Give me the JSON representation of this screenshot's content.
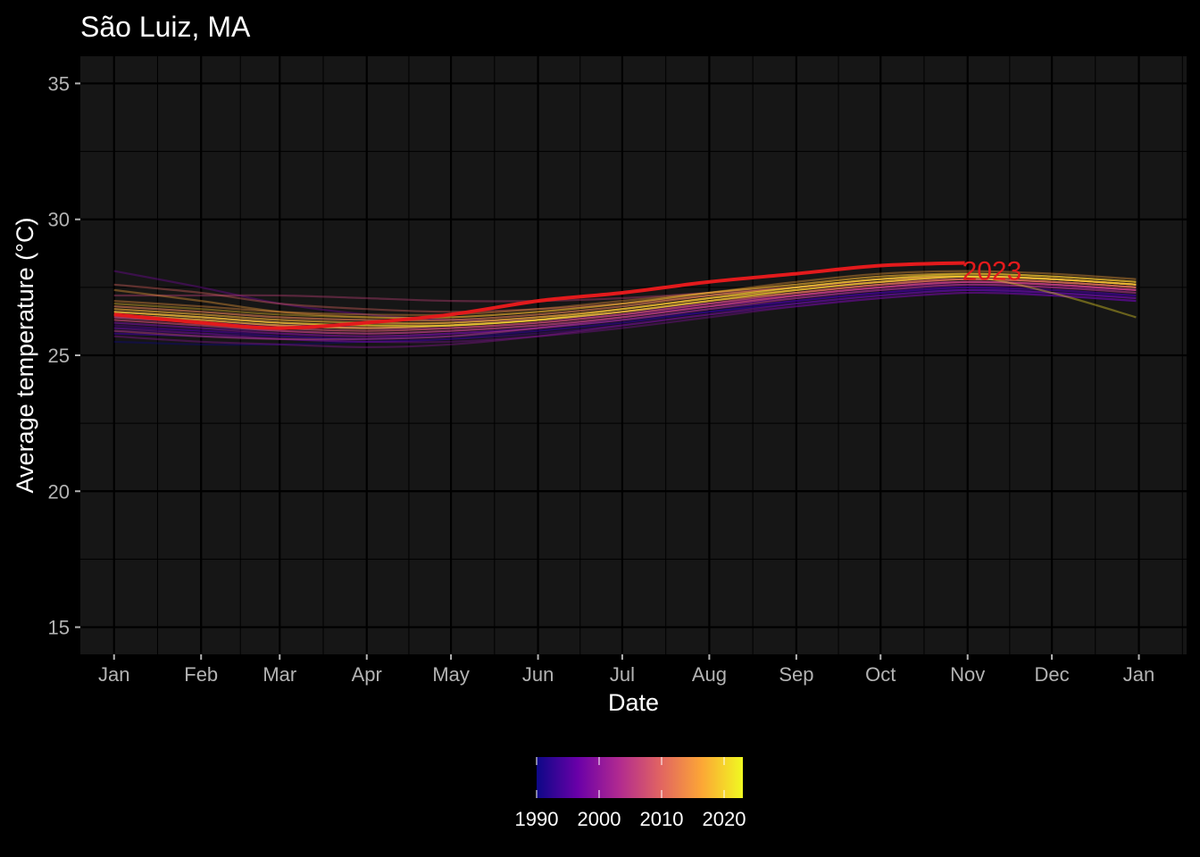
{
  "chart_data": {
    "type": "line",
    "title": "São Luiz, MA",
    "xlabel": "Date",
    "ylabel": "Average temperature (°C)",
    "x_tick_labels": [
      "Jan",
      "Feb",
      "Mar",
      "Apr",
      "May",
      "Jun",
      "Jul",
      "Aug",
      "Sep",
      "Oct",
      "Nov",
      "Dec",
      "Jan"
    ],
    "x_tick_dates": [
      "2023-01-01",
      "2023-02-01",
      "2023-03-01",
      "2023-04-01",
      "2023-05-01",
      "2023-06-01",
      "2023-07-01",
      "2023-08-01",
      "2023-09-01",
      "2023-10-01",
      "2023-11-01",
      "2023-12-01",
      "2024-01-01"
    ],
    "y_ticks": [
      15,
      20,
      25,
      30,
      35
    ],
    "ylim": [
      14.0,
      36.0
    ],
    "xlim": [
      "2022-12-20",
      "2024-01-18"
    ],
    "grid": true,
    "panel_background": "#161616",
    "colorbar": {
      "palette": "plasma",
      "colors": [
        "#0d0887",
        "#6a00a8",
        "#b12a90",
        "#e16462",
        "#fca636",
        "#f0f921"
      ],
      "range": [
        1990,
        2023
      ],
      "tick_labels": [
        "1990",
        "2000",
        "2010",
        "2020"
      ],
      "tick_values": [
        1990,
        2000,
        2010,
        2020
      ],
      "position": "bottom"
    },
    "highlight": {
      "name": "2023",
      "color": "#e31a1c",
      "x": [
        "2023-01-01",
        "2023-02-01",
        "2023-03-01",
        "2023-04-01",
        "2023-05-01",
        "2023-06-01",
        "2023-07-01",
        "2023-08-01",
        "2023-09-01",
        "2023-10-01",
        "2023-10-31"
      ],
      "y": [
        26.5,
        26.2,
        26.0,
        26.2,
        26.5,
        27.0,
        27.3,
        27.7,
        28.0,
        28.3,
        28.4
      ]
    },
    "series_x": [
      "2023-01-01",
      "2023-02-01",
      "2023-03-01",
      "2023-04-01",
      "2023-05-01",
      "2023-06-01",
      "2023-07-01",
      "2023-08-01",
      "2023-09-01",
      "2023-10-01",
      "2023-11-01",
      "2023-12-01",
      "2023-12-31"
    ],
    "series": [
      {
        "year": 1990,
        "values": [
          25.5,
          25.4,
          25.4,
          25.5,
          25.6,
          25.9,
          26.2,
          26.6,
          26.9,
          27.2,
          27.4,
          27.3,
          27.2
        ]
      },
      {
        "year": 1991,
        "values": [
          25.8,
          25.7,
          25.6,
          25.6,
          25.8,
          26.0,
          26.3,
          26.6,
          27.0,
          27.3,
          27.4,
          27.2,
          27.0
        ]
      },
      {
        "year": 1992,
        "values": [
          26.0,
          25.9,
          25.7,
          25.6,
          25.7,
          26.0,
          26.3,
          26.7,
          27.0,
          27.3,
          27.5,
          27.4,
          27.2
        ]
      },
      {
        "year": 1993,
        "values": [
          26.2,
          26.0,
          25.9,
          25.8,
          25.9,
          26.1,
          26.4,
          26.8,
          27.1,
          27.4,
          27.5,
          27.3,
          27.1
        ]
      },
      {
        "year": 1994,
        "values": [
          25.9,
          25.8,
          25.7,
          25.6,
          25.7,
          25.9,
          26.2,
          26.6,
          26.9,
          27.2,
          27.4,
          27.3,
          27.1
        ]
      },
      {
        "year": 1995,
        "values": [
          25.8,
          25.7,
          25.6,
          25.5,
          25.6,
          25.8,
          26.1,
          26.5,
          26.8,
          27.1,
          27.3,
          27.2,
          27.0
        ]
      },
      {
        "year": 1996,
        "values": [
          26.1,
          25.9,
          25.8,
          25.7,
          25.8,
          26.0,
          26.3,
          26.7,
          27.0,
          27.3,
          27.5,
          27.4,
          27.2
        ]
      },
      {
        "year": 1997,
        "values": [
          26.4,
          26.2,
          26.1,
          26.0,
          26.1,
          26.3,
          26.6,
          26.9,
          27.2,
          27.5,
          27.6,
          27.5,
          27.3
        ]
      },
      {
        "year": 1998,
        "values": [
          28.1,
          27.5,
          26.9,
          26.5,
          26.3,
          26.3,
          26.5,
          26.8,
          27.1,
          27.4,
          27.6,
          27.5,
          27.4
        ]
      },
      {
        "year": 1999,
        "values": [
          26.0,
          25.8,
          25.6,
          25.5,
          25.5,
          25.7,
          26.0,
          26.4,
          26.8,
          27.1,
          27.3,
          27.2,
          27.0
        ]
      },
      {
        "year": 2000,
        "values": [
          25.7,
          25.5,
          25.4,
          25.3,
          25.4,
          25.7,
          26.1,
          26.5,
          26.9,
          27.2,
          27.4,
          27.3,
          27.1
        ]
      },
      {
        "year": 2001,
        "values": [
          26.2,
          26.0,
          25.8,
          25.7,
          25.8,
          26.0,
          26.4,
          26.8,
          27.2,
          27.5,
          27.7,
          27.6,
          27.4
        ]
      },
      {
        "year": 2002,
        "values": [
          26.6,
          26.4,
          26.2,
          26.0,
          26.0,
          26.2,
          26.5,
          26.9,
          27.3,
          27.6,
          27.7,
          27.6,
          27.4
        ]
      },
      {
        "year": 2003,
        "values": [
          26.4,
          26.2,
          26.0,
          25.9,
          26.0,
          26.2,
          26.5,
          26.9,
          27.2,
          27.5,
          27.7,
          27.6,
          27.4
        ]
      },
      {
        "year": 2004,
        "values": [
          26.3,
          26.1,
          25.9,
          25.8,
          25.9,
          26.1,
          26.4,
          26.8,
          27.2,
          27.5,
          27.7,
          27.6,
          27.4
        ]
      },
      {
        "year": 2005,
        "values": [
          26.8,
          26.6,
          26.4,
          26.3,
          26.3,
          26.5,
          26.8,
          27.2,
          27.5,
          27.8,
          27.9,
          27.8,
          27.6
        ]
      },
      {
        "year": 2006,
        "values": [
          27.2,
          27.2,
          27.2,
          27.1,
          27.0,
          27.0,
          27.1,
          27.3,
          27.5,
          27.7,
          27.8,
          27.7,
          27.5
        ]
      },
      {
        "year": 2007,
        "values": [
          26.5,
          26.3,
          26.1,
          26.0,
          26.1,
          26.3,
          26.6,
          27.0,
          27.3,
          27.6,
          27.8,
          27.7,
          27.5
        ]
      },
      {
        "year": 2008,
        "values": [
          25.9,
          25.7,
          25.6,
          25.6,
          25.7,
          26.0,
          26.3,
          26.7,
          27.1,
          27.4,
          27.6,
          27.5,
          27.3
        ]
      },
      {
        "year": 2009,
        "values": [
          26.3,
          26.1,
          25.9,
          25.8,
          25.9,
          26.1,
          26.4,
          26.8,
          27.2,
          27.5,
          27.7,
          27.6,
          27.4
        ]
      },
      {
        "year": 2010,
        "values": [
          27.6,
          27.3,
          26.9,
          26.7,
          26.6,
          26.7,
          26.9,
          27.2,
          27.5,
          27.8,
          27.9,
          27.8,
          27.6
        ]
      },
      {
        "year": 2011,
        "values": [
          26.4,
          26.2,
          26.0,
          25.9,
          26.0,
          26.2,
          26.5,
          26.9,
          27.3,
          27.6,
          27.8,
          27.7,
          27.5
        ]
      },
      {
        "year": 2012,
        "values": [
          26.7,
          26.5,
          26.3,
          26.2,
          26.2,
          26.4,
          26.7,
          27.1,
          27.4,
          27.7,
          27.9,
          27.8,
          27.6
        ]
      },
      {
        "year": 2013,
        "values": [
          26.6,
          26.4,
          26.2,
          26.1,
          26.2,
          26.4,
          26.7,
          27.1,
          27.4,
          27.7,
          27.9,
          27.8,
          27.6
        ]
      },
      {
        "year": 2014,
        "values": [
          26.5,
          26.3,
          26.1,
          26.0,
          26.1,
          26.3,
          26.6,
          27.0,
          27.3,
          27.6,
          27.8,
          27.7,
          27.5
        ]
      },
      {
        "year": 2015,
        "values": [
          27.0,
          26.8,
          26.6,
          26.5,
          26.5,
          26.7,
          27.0,
          27.3,
          27.6,
          27.9,
          28.0,
          27.9,
          27.7
        ]
      },
      {
        "year": 2016,
        "values": [
          27.4,
          27.0,
          26.6,
          26.4,
          26.4,
          26.6,
          26.9,
          27.3,
          27.7,
          28.0,
          28.1,
          28.0,
          27.8
        ]
      },
      {
        "year": 2017,
        "values": [
          26.8,
          26.6,
          26.4,
          26.3,
          26.3,
          26.5,
          26.8,
          27.2,
          27.5,
          27.8,
          27.9,
          27.8,
          27.6
        ]
      },
      {
        "year": 2018,
        "values": [
          26.6,
          26.4,
          26.2,
          26.1,
          26.1,
          26.3,
          26.6,
          27.0,
          27.4,
          27.7,
          27.9,
          27.8,
          27.6
        ]
      },
      {
        "year": 2019,
        "values": [
          26.9,
          26.7,
          26.5,
          26.4,
          26.4,
          26.6,
          26.9,
          27.3,
          27.6,
          27.9,
          28.0,
          27.9,
          27.7
        ]
      },
      {
        "year": 2020,
        "values": [
          26.7,
          26.5,
          26.3,
          26.2,
          26.2,
          26.4,
          26.7,
          27.1,
          27.5,
          27.8,
          28.0,
          27.9,
          27.7
        ]
      },
      {
        "year": 2021,
        "values": [
          26.5,
          26.3,
          26.1,
          26.0,
          26.1,
          26.3,
          26.7,
          27.1,
          27.5,
          27.8,
          27.9,
          27.3,
          26.4
        ]
      },
      {
        "year": 2022,
        "values": [
          26.6,
          26.4,
          26.2,
          26.1,
          26.1,
          26.3,
          26.6,
          27.0,
          27.4,
          27.7,
          27.9,
          27.8,
          27.6
        ]
      }
    ]
  }
}
